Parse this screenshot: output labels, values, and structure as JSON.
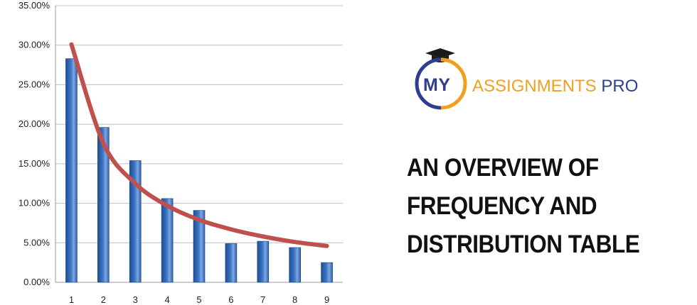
{
  "chart_data": {
    "type": "bar",
    "title": "",
    "xlabel": "",
    "ylabel": "",
    "categories": [
      "1",
      "2",
      "3",
      "4",
      "5",
      "6",
      "7",
      "8",
      "9"
    ],
    "series": [
      {
        "type": "bar",
        "values": [
          28.3,
          19.6,
          15.4,
          10.6,
          9.1,
          4.9,
          5.2,
          4.4,
          2.5
        ]
      },
      {
        "type": "line",
        "values": [
          30.1,
          17.6,
          12.5,
          9.7,
          7.9,
          6.7,
          5.8,
          5.1,
          4.6
        ]
      }
    ],
    "ylim": [
      0,
      35
    ],
    "yticks": [
      "0.00%",
      "5.00%",
      "10.00%",
      "15.00%",
      "20.00%",
      "25.00%",
      "30.00%",
      "35.00%"
    ],
    "grid": true,
    "colors": {
      "bar": "#3d74c4",
      "curve": "#c0504d",
      "grid": "#bfbfbf"
    }
  },
  "logo": {
    "part1": "MY",
    "part2": "ASSIGNMENTS",
    "part3": "PRO"
  },
  "headline": [
    "AN OVERVIEW OF",
    "FREQUENCY AND",
    "DISTRIBUTION TABLE"
  ]
}
